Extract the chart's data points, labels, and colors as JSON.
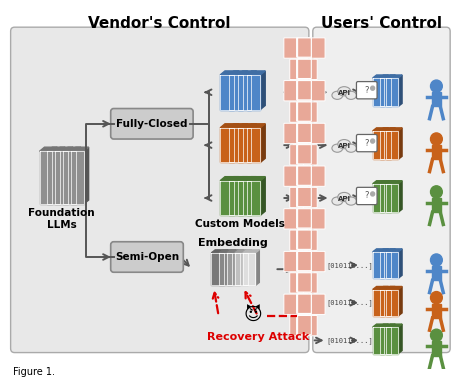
{
  "title_vendor": "Vendor's Control",
  "title_users": "Users' Control",
  "label_foundation": "Foundation\nLLMs",
  "label_fully_closed": "Fully-Closed",
  "label_semi_open": "Semi-Open",
  "label_custom_models": "Custom Models",
  "label_embedding": "Embedding",
  "label_recovery": "Recovery Attack",
  "label_api": "API",
  "label_binary": "[010110...]",
  "bg_vendor_color": "#e8e8e8",
  "wall_color": "#e8a898",
  "blue_color": "#4e86c8",
  "orange_color": "#c8621a",
  "green_color": "#5a9040",
  "gray_color": "#909090",
  "gray_dark": "#707070",
  "gray_light": "#d0d0d0",
  "red_color": "#dd0000",
  "arrow_gray": "#555555",
  "figsize": [
    4.6,
    3.8
  ],
  "dpi": 100
}
